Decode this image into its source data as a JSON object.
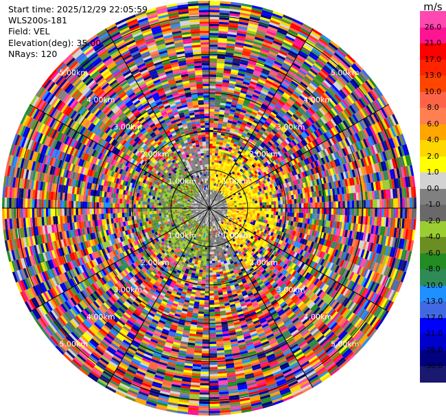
{
  "info": {
    "start_time": "Start time: 2025/12/29 22:05:59",
    "site": "WLS200s-181",
    "field": "Field: VEL",
    "elevation": "Elevation(deg): 35.00",
    "nrays": "NRays: 120"
  },
  "colorbar": {
    "unit": "m/s",
    "labels": [
      "26.0",
      "21.0",
      "17.0",
      "13.0",
      "10.0",
      "8.0",
      "6.0",
      "4.0",
      "2.0",
      "1.0",
      "0.0",
      "-1.0",
      "-2.0",
      "-4.0",
      "-6.0",
      "-8.0",
      "-10.0",
      "-13.0",
      "-17.0",
      "-21.0",
      "-26.0",
      "-30.0"
    ],
    "colors": [
      "#ff48b0",
      "#ff1493",
      "#ff0000",
      "#ff2400",
      "#ff4500",
      "#ff6347",
      "#ff7f50",
      "#ffa500",
      "#ffd700",
      "#ffff00",
      "#d3d3d3",
      "#808080",
      "#696969",
      "#9acd32",
      "#6b8e23",
      "#228b22",
      "#2e8b57",
      "#1e90ff",
      "#4169e1",
      "#0000ff",
      "#0000cd",
      "#000080",
      "#191970"
    ]
  },
  "chart_data": {
    "type": "ppi",
    "field": "VEL",
    "unit": "m/s",
    "elevation_deg": 35.0,
    "nrays": 120,
    "max_range_km": 5.4,
    "range_rings_km": [
      1.0,
      2.0,
      3.0,
      4.0,
      5.0
    ],
    "ring_labels": [
      "1.00km",
      "2.00km",
      "3.00km",
      "4.00km",
      "5.00km"
    ],
    "azimuth_lines_deg": [
      0,
      30,
      60,
      90,
      120,
      150,
      180,
      210,
      240,
      270,
      300,
      330
    ],
    "near_field": {
      "gray_core_km": 0.5,
      "yellow_sector_deg": [
        0,
        150
      ],
      "green_sector_deg": [
        180,
        330
      ],
      "transition_km": 1.3
    },
    "far_field": "noise"
  }
}
